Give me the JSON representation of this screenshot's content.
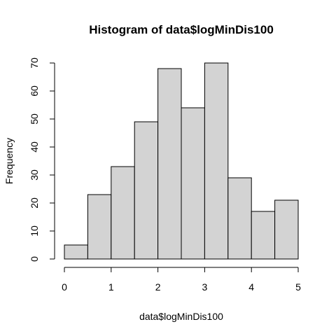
{
  "chart_data": {
    "type": "bar",
    "title": "Histogram of data$logMinDis100",
    "xlabel": "data$logMinDis100",
    "ylabel": "Frequency",
    "bins": [
      {
        "start": 0.0,
        "end": 0.5,
        "count": 5
      },
      {
        "start": 0.5,
        "end": 1.0,
        "count": 23
      },
      {
        "start": 1.0,
        "end": 1.5,
        "count": 33
      },
      {
        "start": 1.5,
        "end": 2.0,
        "count": 49
      },
      {
        "start": 2.0,
        "end": 2.5,
        "count": 68
      },
      {
        "start": 2.5,
        "end": 3.0,
        "count": 54
      },
      {
        "start": 3.0,
        "end": 3.5,
        "count": 70
      },
      {
        "start": 3.5,
        "end": 4.0,
        "count": 29
      },
      {
        "start": 4.0,
        "end": 4.5,
        "count": 17
      },
      {
        "start": 4.5,
        "end": 5.0,
        "count": 21
      }
    ],
    "xlim": [
      0,
      5
    ],
    "ylim": [
      0,
      70
    ],
    "x_ticks": [
      "0",
      "1",
      "2",
      "3",
      "4",
      "5"
    ],
    "y_ticks": [
      "0",
      "10",
      "20",
      "30",
      "40",
      "50",
      "60",
      "70"
    ],
    "grid": false,
    "bar_fill": "#d3d3d3",
    "bar_stroke": "#000000"
  }
}
